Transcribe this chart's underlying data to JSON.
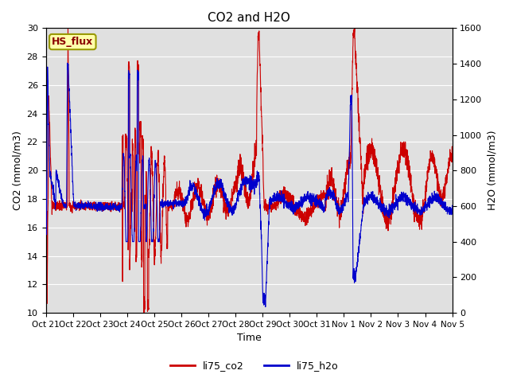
{
  "title": "CO2 and H2O",
  "xlabel": "Time",
  "ylabel_left": "CO2 (mmol/m3)",
  "ylabel_right": "H2O (mmol/m3)",
  "ylim_left": [
    10,
    30
  ],
  "ylim_right": [
    0,
    1600
  ],
  "yticks_left": [
    10,
    12,
    14,
    16,
    18,
    20,
    22,
    24,
    26,
    28,
    30
  ],
  "yticks_right": [
    0,
    200,
    400,
    600,
    800,
    1000,
    1200,
    1400,
    1600
  ],
  "xtick_labels": [
    "Oct 21",
    "Oct 22",
    "Oct 23",
    "Oct 24",
    "Oct 25",
    "Oct 26",
    "Oct 27",
    "Oct 28",
    "Oct 29",
    "Oct 30",
    "Oct 31",
    "Nov 1",
    "Nov 2",
    "Nov 3",
    "Nov 4",
    "Nov 5"
  ],
  "co2_color": "#cc0000",
  "h2o_color": "#0000cc",
  "plot_bg_color": "#e0e0e0",
  "fig_bg_color": "#ffffff",
  "label_box_text": "HS_flux",
  "label_box_bg": "#ffffaa",
  "label_box_border": "#888800",
  "legend_co2": "li75_co2",
  "legend_h2o": "li75_h2o",
  "line_width": 0.8
}
